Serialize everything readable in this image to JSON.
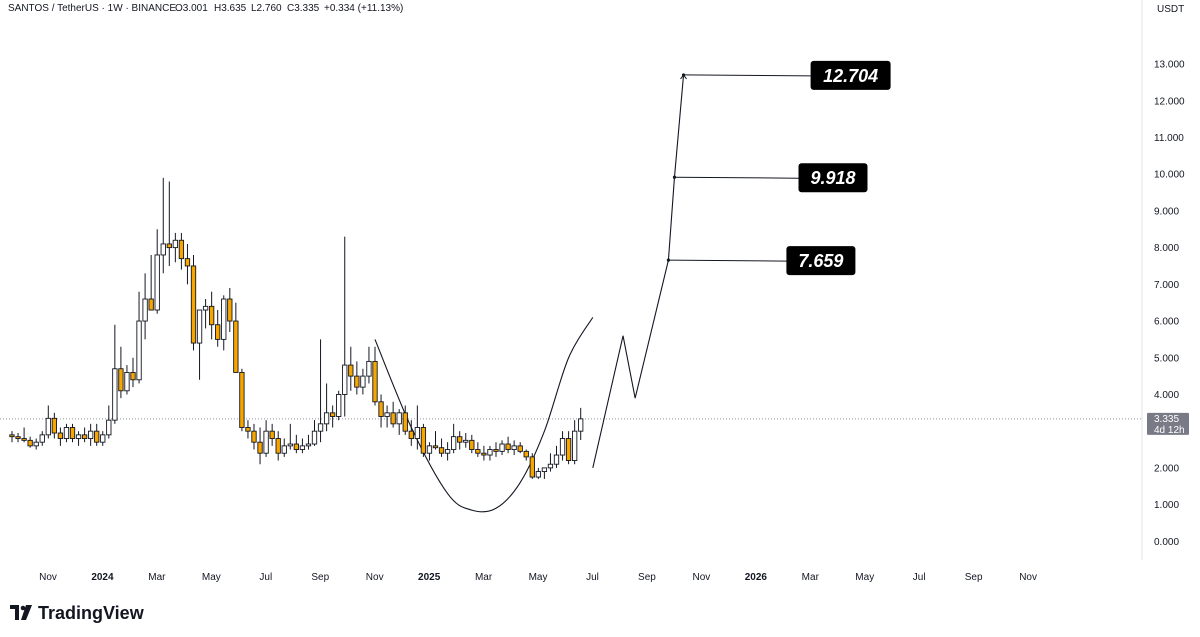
{
  "header": {
    "symbol_line": "SANTOS / TetherUS · 1W · BINANCE",
    "open": "O3.001",
    "high": "H3.635",
    "low": "L2.760",
    "close": "C3.335",
    "change": "+0.334 (+11.13%)",
    "currency": "USDT"
  },
  "price_tag": {
    "price": "3.335",
    "countdown": "4d 12h"
  },
  "brand": {
    "name": "TradingView"
  },
  "colors": {
    "up": "#ffffff",
    "down": "#f7a600",
    "wick": "#131722",
    "axis_text": "#131722",
    "label_bg": "#000000"
  },
  "chart_data": {
    "type": "candlestick",
    "ylim": [
      -0.4,
      14.2
    ],
    "y_ticks": [
      "0.000",
      "1.000",
      "2.000",
      "3.000",
      "4.000",
      "5.000",
      "6.000",
      "7.000",
      "8.000",
      "9.000",
      "10.000",
      "11.000",
      "12.000",
      "13.000"
    ],
    "x_ticks": [
      {
        "label": "Nov",
        "week": 0,
        "bold": false
      },
      {
        "label": "2024",
        "week": 9,
        "bold": true
      },
      {
        "label": "Mar",
        "week": 18,
        "bold": false
      },
      {
        "label": "May",
        "week": 27,
        "bold": false
      },
      {
        "label": "Jul",
        "week": 36,
        "bold": false
      },
      {
        "label": "Sep",
        "week": 45,
        "bold": false
      },
      {
        "label": "Nov",
        "week": 54,
        "bold": false
      },
      {
        "label": "2025",
        "week": 63,
        "bold": true
      },
      {
        "label": "Mar",
        "week": 72,
        "bold": false
      },
      {
        "label": "May",
        "week": 81,
        "bold": false
      },
      {
        "label": "Jul",
        "week": 90,
        "bold": false
      },
      {
        "label": "Sep",
        "week": 99,
        "bold": false
      },
      {
        "label": "Nov",
        "week": 108,
        "bold": false
      },
      {
        "label": "2026",
        "week": 117,
        "bold": true
      },
      {
        "label": "Mar",
        "week": 126,
        "bold": false
      },
      {
        "label": "May",
        "week": 135,
        "bold": false
      },
      {
        "label": "Jul",
        "week": 144,
        "bold": false
      },
      {
        "label": "Sep",
        "week": 153,
        "bold": false
      },
      {
        "label": "Nov",
        "week": 162,
        "bold": false
      }
    ],
    "current_price": 3.335,
    "candles": [
      [
        2.9,
        3.0,
        2.7,
        2.85
      ],
      [
        2.85,
        2.95,
        2.7,
        2.8
      ],
      [
        2.8,
        3.1,
        2.7,
        2.75
      ],
      [
        2.75,
        2.85,
        2.55,
        2.6
      ],
      [
        2.6,
        2.8,
        2.5,
        2.7
      ],
      [
        2.7,
        3.0,
        2.6,
        2.9
      ],
      [
        2.9,
        3.7,
        2.8,
        3.35
      ],
      [
        3.35,
        3.5,
        2.8,
        2.95
      ],
      [
        2.95,
        3.1,
        2.6,
        2.8
      ],
      [
        2.8,
        3.2,
        2.7,
        3.1
      ],
      [
        3.1,
        3.2,
        2.7,
        2.8
      ],
      [
        2.8,
        3.0,
        2.6,
        2.9
      ],
      [
        2.9,
        3.1,
        2.7,
        2.8
      ],
      [
        2.8,
        3.2,
        2.6,
        3.0
      ],
      [
        3.0,
        3.2,
        2.6,
        2.7
      ],
      [
        2.7,
        3.0,
        2.6,
        2.9
      ],
      [
        2.9,
        3.7,
        2.8,
        3.3
      ],
      [
        3.3,
        5.9,
        3.2,
        4.7
      ],
      [
        4.7,
        5.3,
        3.9,
        4.1
      ],
      [
        4.1,
        4.8,
        4.0,
        4.6
      ],
      [
        4.6,
        5.0,
        4.2,
        4.4
      ],
      [
        4.4,
        6.8,
        4.3,
        6.0
      ],
      [
        6.0,
        7.3,
        5.5,
        6.6
      ],
      [
        6.6,
        7.8,
        6.3,
        6.3
      ],
      [
        6.3,
        8.5,
        6.2,
        7.8
      ],
      [
        7.8,
        9.9,
        7.3,
        8.1
      ],
      [
        8.1,
        9.8,
        7.5,
        8.0
      ],
      [
        8.0,
        8.4,
        7.6,
        8.2
      ],
      [
        8.2,
        8.4,
        7.4,
        7.7
      ],
      [
        7.7,
        8.1,
        7.0,
        7.5
      ],
      [
        7.5,
        7.8,
        5.2,
        5.4
      ],
      [
        5.4,
        6.3,
        4.4,
        6.3
      ],
      [
        6.3,
        6.6,
        5.8,
        6.4
      ],
      [
        6.4,
        6.8,
        5.5,
        5.9
      ],
      [
        5.9,
        6.3,
        5.3,
        5.5
      ],
      [
        5.5,
        6.7,
        5.2,
        6.6
      ],
      [
        6.6,
        6.9,
        5.7,
        6.0
      ],
      [
        6.0,
        6.5,
        4.7,
        4.6
      ],
      [
        4.6,
        4.7,
        3.0,
        3.1
      ],
      [
        3.1,
        3.3,
        2.8,
        3.0
      ],
      [
        3.0,
        3.2,
        2.5,
        2.7
      ],
      [
        2.7,
        3.1,
        2.1,
        2.4
      ],
      [
        2.4,
        3.3,
        2.3,
        3.0
      ],
      [
        3.0,
        3.2,
        2.6,
        2.8
      ],
      [
        2.8,
        3.0,
        2.2,
        2.4
      ],
      [
        2.4,
        2.8,
        2.3,
        2.6
      ],
      [
        2.6,
        3.2,
        2.5,
        2.65
      ],
      [
        2.65,
        2.9,
        2.4,
        2.5
      ],
      [
        2.5,
        2.8,
        2.4,
        2.6
      ],
      [
        2.6,
        2.9,
        2.5,
        2.65
      ],
      [
        2.65,
        3.3,
        2.6,
        3.0
      ],
      [
        3.0,
        5.5,
        2.7,
        3.2
      ],
      [
        3.2,
        4.3,
        3.0,
        3.5
      ],
      [
        3.5,
        3.7,
        3.1,
        3.4
      ],
      [
        3.4,
        4.1,
        3.3,
        4.0
      ],
      [
        4.0,
        8.3,
        3.4,
        4.8
      ],
      [
        4.8,
        5.3,
        4.1,
        4.5
      ],
      [
        4.5,
        4.9,
        4.0,
        4.2
      ],
      [
        4.2,
        4.7,
        4.0,
        4.5
      ],
      [
        4.5,
        5.3,
        4.3,
        4.9
      ],
      [
        4.9,
        5.3,
        3.7,
        3.8
      ],
      [
        3.8,
        4.0,
        3.1,
        3.4
      ],
      [
        3.4,
        3.7,
        3.1,
        3.5
      ],
      [
        3.5,
        3.8,
        3.1,
        3.2
      ],
      [
        3.2,
        3.6,
        2.9,
        3.5
      ],
      [
        3.5,
        3.7,
        2.9,
        3.0
      ],
      [
        3.0,
        3.3,
        2.6,
        2.8
      ],
      [
        2.8,
        3.7,
        2.5,
        3.1
      ],
      [
        3.1,
        3.2,
        2.3,
        2.4
      ],
      [
        2.4,
        2.7,
        2.2,
        2.6
      ],
      [
        2.6,
        3.0,
        2.5,
        2.55
      ],
      [
        2.55,
        2.8,
        2.3,
        2.4
      ],
      [
        2.4,
        2.7,
        2.2,
        2.5
      ],
      [
        2.5,
        3.2,
        2.4,
        2.85
      ],
      [
        2.85,
        3.0,
        2.5,
        2.7
      ],
      [
        2.7,
        2.95,
        2.55,
        2.75
      ],
      [
        2.75,
        2.9,
        2.4,
        2.5
      ],
      [
        2.5,
        2.7,
        2.3,
        2.4
      ],
      [
        2.4,
        2.6,
        2.2,
        2.35
      ],
      [
        2.35,
        2.6,
        2.2,
        2.5
      ],
      [
        2.5,
        2.7,
        2.3,
        2.45
      ],
      [
        2.45,
        2.75,
        2.35,
        2.65
      ],
      [
        2.65,
        2.85,
        2.4,
        2.5
      ],
      [
        2.5,
        2.75,
        2.35,
        2.6
      ],
      [
        2.6,
        2.7,
        2.4,
        2.45
      ],
      [
        2.45,
        2.5,
        2.2,
        2.3
      ],
      [
        2.3,
        2.4,
        1.7,
        1.75
      ],
      [
        1.75,
        2.0,
        1.7,
        1.9
      ],
      [
        1.9,
        2.0,
        1.7,
        2.0
      ],
      [
        2.0,
        2.4,
        1.9,
        2.1
      ],
      [
        2.1,
        2.6,
        2.0,
        2.35
      ],
      [
        2.35,
        3.0,
        2.2,
        2.8
      ],
      [
        2.8,
        3.0,
        2.1,
        2.2
      ],
      [
        2.2,
        3.3,
        2.1,
        3.0
      ],
      [
        3.0,
        3.635,
        2.76,
        3.335
      ]
    ],
    "projection_path": [
      [
        96,
        2.0
      ],
      [
        101,
        5.6
      ],
      [
        103,
        3.9
      ],
      [
        108.5,
        7.659
      ],
      [
        109.5,
        9.918
      ],
      [
        111,
        12.704
      ]
    ],
    "cup_curve": [
      [
        60,
        5.5
      ],
      [
        66,
        3.1
      ],
      [
        72,
        1.3
      ],
      [
        76,
        0.85
      ],
      [
        80,
        0.9
      ],
      [
        84,
        1.6
      ],
      [
        88,
        3.0
      ],
      [
        92,
        5.0
      ],
      [
        96,
        6.1
      ]
    ],
    "targets": [
      {
        "label": "7.659",
        "value": 7.659,
        "from_week": 108.5,
        "to_week": 128
      },
      {
        "label": "9.918",
        "value": 9.918,
        "from_week": 109.5,
        "to_week": 130
      },
      {
        "label": "12.704",
        "value": 12.704,
        "from_week": 111,
        "to_week": 132
      }
    ]
  }
}
